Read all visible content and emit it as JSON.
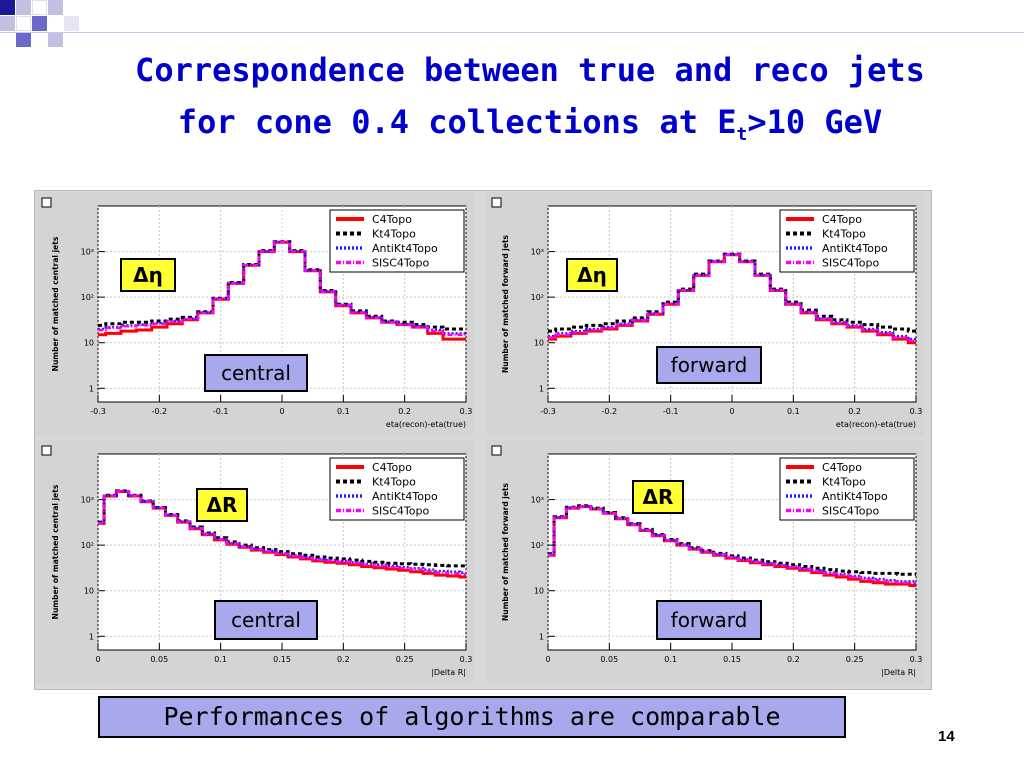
{
  "slide": {
    "title_main": "Correspondence between true and reco jets",
    "title_line2_pre": "for cone 0.4 collections at E",
    "title_sub": "t",
    "title_line2_post": ">10 GeV",
    "footer": "Performances of algorithms are comparable",
    "page_number": "14",
    "title_color": "#0000cc",
    "label_bg": "#a8a8ec",
    "symbol_bg": "#ffff33"
  },
  "chart_data": [
    {
      "type": "line",
      "id": "deta-central",
      "xlabel": "eta(recon)-eta(true)",
      "ylabel": "Number of matched central jets",
      "xlim": [
        -0.3,
        0.3
      ],
      "ylim": [
        0.5,
        10000
      ],
      "log_y": true,
      "xticks": [
        "-0.3",
        "-0.2",
        "-0.1",
        "0",
        "0.1",
        "0.2",
        "0.3"
      ],
      "yticks": [
        "1",
        "10",
        "10²",
        "10³"
      ],
      "legend_position": "top-right",
      "legend": [
        "C4Topo",
        "Kt4Topo",
        "AntiKt4Topo",
        "SISC4Topo"
      ],
      "symbol": "Δη",
      "region": "central",
      "x": [
        -0.3,
        -0.275,
        -0.25,
        -0.225,
        -0.2,
        -0.175,
        -0.15,
        -0.125,
        -0.1,
        -0.075,
        -0.05,
        -0.025,
        0,
        0.025,
        0.05,
        0.075,
        0.1,
        0.125,
        0.15,
        0.175,
        0.2,
        0.225,
        0.25,
        0.275,
        0.3
      ],
      "series": [
        {
          "name": "C4Topo",
          "color": "#ff0000",
          "values": [
            15,
            16,
            18,
            19,
            22,
            26,
            32,
            45,
            90,
            200,
            500,
            1000,
            1600,
            1000,
            380,
            130,
            65,
            45,
            35,
            28,
            25,
            22,
            16,
            12,
            12
          ]
        },
        {
          "name": "Kt4Topo",
          "color": "#000000",
          "values": [
            24,
            26,
            28,
            28,
            30,
            33,
            36,
            48,
            95,
            210,
            520,
            1050,
            1650,
            1050,
            400,
            140,
            70,
            50,
            38,
            30,
            28,
            25,
            22,
            20,
            20
          ]
        },
        {
          "name": "AntiKt4Topo",
          "color": "#2020ff",
          "values": [
            20,
            22,
            24,
            25,
            27,
            30,
            34,
            46,
            92,
            205,
            510,
            1020,
            1620,
            1020,
            390,
            135,
            68,
            47,
            36,
            29,
            26,
            23,
            19,
            16,
            16
          ]
        },
        {
          "name": "SISC4Topo",
          "color": "#ff00ff",
          "values": [
            19,
            21,
            23,
            24,
            26,
            29,
            33,
            45,
            91,
            202,
            505,
            1010,
            1610,
            1010,
            385,
            132,
            66,
            46,
            35,
            28,
            25,
            22,
            18,
            15,
            15
          ]
        }
      ]
    },
    {
      "type": "line",
      "id": "deta-forward",
      "xlabel": "eta(recon)-eta(true)",
      "ylabel": "Number of matched forward jets",
      "xlim": [
        -0.3,
        0.3
      ],
      "ylim": [
        0.5,
        10000
      ],
      "log_y": true,
      "xticks": [
        "-0.3",
        "-0.2",
        "-0.1",
        "0",
        "0.1",
        "0.2",
        "0.3"
      ],
      "yticks": [
        "1",
        "10",
        "10²",
        "10³"
      ],
      "legend_position": "top-right",
      "legend": [
        "C4Topo",
        "Kt4Topo",
        "AntiKt4Topo",
        "SISC4Topo"
      ],
      "symbol": "Δη",
      "region": "forward",
      "x": [
        -0.3,
        -0.275,
        -0.25,
        -0.225,
        -0.2,
        -0.175,
        -0.15,
        -0.125,
        -0.1,
        -0.075,
        -0.05,
        -0.025,
        0,
        0.025,
        0.05,
        0.075,
        0.1,
        0.125,
        0.15,
        0.175,
        0.2,
        0.225,
        0.25,
        0.275,
        0.3
      ],
      "series": [
        {
          "name": "C4Topo",
          "color": "#ff0000",
          "values": [
            12,
            14,
            16,
            18,
            20,
            24,
            30,
            42,
            70,
            140,
            300,
            600,
            850,
            600,
            300,
            140,
            70,
            45,
            32,
            26,
            22,
            18,
            15,
            12,
            10
          ]
        },
        {
          "name": "Kt4Topo",
          "color": "#000000",
          "values": [
            18,
            20,
            22,
            24,
            26,
            30,
            35,
            48,
            78,
            150,
            320,
            620,
            880,
            620,
            320,
            150,
            78,
            52,
            38,
            32,
            28,
            25,
            22,
            20,
            18
          ]
        },
        {
          "name": "AntiKt4Topo",
          "color": "#2020ff",
          "values": [
            14,
            16,
            18,
            20,
            22,
            26,
            32,
            44,
            72,
            142,
            305,
            605,
            860,
            605,
            305,
            142,
            72,
            48,
            34,
            28,
            24,
            20,
            17,
            14,
            12
          ]
        },
        {
          "name": "SISC4Topo",
          "color": "#ff00ff",
          "values": [
            13,
            15,
            17,
            19,
            21,
            25,
            31,
            43,
            71,
            141,
            302,
            602,
            855,
            602,
            302,
            141,
            71,
            47,
            33,
            27,
            23,
            19,
            16,
            13,
            11
          ]
        }
      ]
    },
    {
      "type": "line",
      "id": "dr-central",
      "xlabel": "|Delta R|",
      "ylabel": "Number of matched central jets",
      "xlim": [
        0,
        0.3
      ],
      "ylim": [
        0.5,
        10000
      ],
      "log_y": true,
      "xticks": [
        "0",
        "0.05",
        "0.1",
        "0.15",
        "0.2",
        "0.25",
        "0.3"
      ],
      "yticks": [
        "1",
        "10",
        "10²",
        "10³"
      ],
      "legend_position": "top-right",
      "legend": [
        "C4Topo",
        "Kt4Topo",
        "AntiKt4Topo",
        "SISC4Topo"
      ],
      "symbol": "ΔR",
      "region": "central",
      "x": [
        0,
        0.01,
        0.02,
        0.03,
        0.04,
        0.05,
        0.06,
        0.07,
        0.08,
        0.09,
        0.1,
        0.11,
        0.12,
        0.13,
        0.14,
        0.15,
        0.16,
        0.17,
        0.18,
        0.19,
        0.2,
        0.21,
        0.22,
        0.23,
        0.24,
        0.25,
        0.26,
        0.27,
        0.28,
        0.29,
        0.3
      ],
      "series": [
        {
          "name": "C4Topo",
          "color": "#ff0000",
          "values": [
            300,
            1200,
            1500,
            1200,
            900,
            650,
            450,
            320,
            230,
            170,
            130,
            105,
            90,
            78,
            70,
            62,
            55,
            50,
            45,
            42,
            40,
            37,
            34,
            32,
            30,
            28,
            26,
            24,
            22,
            21,
            20
          ]
        },
        {
          "name": "Kt4Topo",
          "color": "#000000",
          "values": [
            320,
            1250,
            1550,
            1250,
            930,
            670,
            470,
            340,
            250,
            185,
            145,
            118,
            100,
            88,
            80,
            72,
            65,
            60,
            55,
            52,
            50,
            47,
            44,
            42,
            40,
            39,
            38,
            37,
            36,
            35,
            35
          ]
        },
        {
          "name": "AntiKt4Topo",
          "color": "#2020ff",
          "values": [
            310,
            1220,
            1520,
            1220,
            910,
            660,
            460,
            330,
            240,
            178,
            137,
            110,
            95,
            83,
            75,
            67,
            60,
            55,
            50,
            47,
            45,
            42,
            39,
            37,
            35,
            33,
            31,
            29,
            27,
            26,
            25
          ]
        },
        {
          "name": "SISC4Topo",
          "color": "#ff00ff",
          "values": [
            305,
            1210,
            1510,
            1210,
            905,
            655,
            455,
            325,
            235,
            174,
            134,
            108,
            93,
            81,
            73,
            65,
            58,
            53,
            48,
            45,
            43,
            40,
            37,
            35,
            33,
            31,
            29,
            27,
            25,
            24,
            23
          ]
        }
      ]
    },
    {
      "type": "line",
      "id": "dr-forward",
      "xlabel": "|Delta R|",
      "ylabel": "Number of matched forward jets",
      "xlim": [
        0,
        0.3
      ],
      "ylim": [
        0.5,
        10000
      ],
      "log_y": true,
      "xticks": [
        "0",
        "0.05",
        "0.1",
        "0.15",
        "0.2",
        "0.25",
        "0.3"
      ],
      "yticks": [
        "1",
        "10",
        "10²",
        "10³"
      ],
      "legend_position": "top-right",
      "legend": [
        "C4Topo",
        "Kt4Topo",
        "AntiKt4Topo",
        "SISC4Topo"
      ],
      "symbol": "ΔR",
      "region": "forward",
      "x": [
        0,
        0.01,
        0.02,
        0.03,
        0.04,
        0.05,
        0.06,
        0.07,
        0.08,
        0.09,
        0.1,
        0.11,
        0.12,
        0.13,
        0.14,
        0.15,
        0.16,
        0.17,
        0.18,
        0.19,
        0.2,
        0.21,
        0.22,
        0.23,
        0.24,
        0.25,
        0.26,
        0.27,
        0.28,
        0.29,
        0.3
      ],
      "series": [
        {
          "name": "C4Topo",
          "color": "#ff0000",
          "values": [
            60,
            400,
            650,
            700,
            620,
            500,
            380,
            280,
            210,
            160,
            125,
            100,
            82,
            70,
            60,
            52,
            46,
            41,
            37,
            34,
            31,
            28,
            25,
            22,
            20,
            18,
            16,
            15,
            14,
            14,
            13
          ]
        },
        {
          "name": "Kt4Topo",
          "color": "#000000",
          "values": [
            65,
            420,
            680,
            730,
            650,
            520,
            400,
            295,
            222,
            170,
            133,
            108,
            88,
            76,
            66,
            58,
            52,
            47,
            43,
            40,
            37,
            34,
            31,
            29,
            27,
            26,
            25,
            24,
            24,
            23,
            23
          ]
        },
        {
          "name": "AntiKt4Topo",
          "color": "#2020ff",
          "values": [
            62,
            410,
            665,
            715,
            635,
            510,
            390,
            288,
            216,
            165,
            129,
            104,
            85,
            73,
            63,
            55,
            49,
            44,
            40,
            37,
            34,
            31,
            28,
            25,
            23,
            21,
            19,
            18,
            17,
            16,
            16
          ]
        },
        {
          "name": "SISC4Topo",
          "color": "#ff00ff",
          "values": [
            61,
            405,
            660,
            710,
            630,
            505,
            385,
            284,
            213,
            162,
            127,
            102,
            84,
            72,
            62,
            54,
            48,
            43,
            39,
            36,
            33,
            30,
            27,
            24,
            22,
            20,
            18,
            17,
            16,
            15,
            15
          ]
        }
      ]
    }
  ]
}
